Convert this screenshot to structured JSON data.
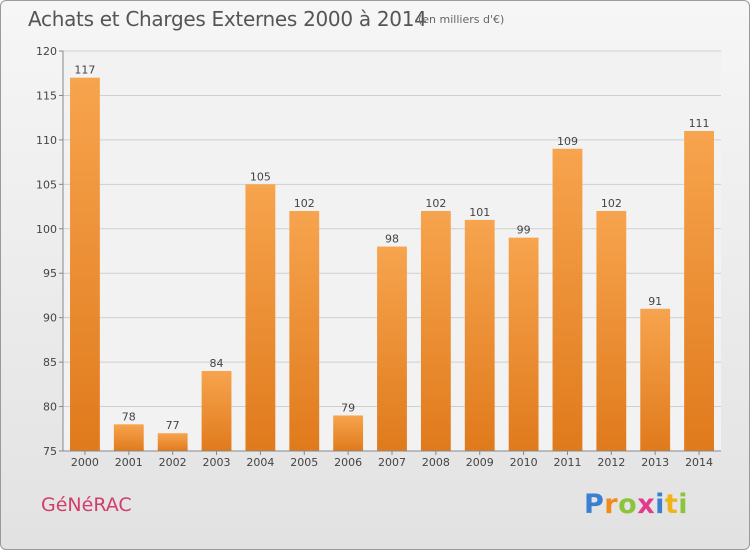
{
  "header": {
    "title": "Achats et Charges Externes 2000 à 2014",
    "unit": "(en milliers d'€)"
  },
  "footer": {
    "place": "GéNéRAC",
    "logo_letters": [
      "P",
      "r",
      "o",
      "x",
      "i",
      "t",
      "i"
    ]
  },
  "colors": {
    "bar_top": "#f7a44e",
    "bar_bottom": "#e07a1c",
    "place_text": "#d23d6c",
    "logo_letters": [
      "#3a7fd1",
      "#f08a18",
      "#8cc43c",
      "#e23a8e",
      "#3a7fd1",
      "#f0b418",
      "#8cc43c"
    ]
  },
  "chart_data": {
    "type": "bar",
    "title": "Achats et Charges Externes 2000 à 2014",
    "subtitle": "(en milliers d'€)",
    "categories": [
      "2000",
      "2001",
      "2002",
      "2003",
      "2004",
      "2005",
      "2006",
      "2007",
      "2008",
      "2009",
      "2010",
      "2011",
      "2012",
      "2013",
      "2014"
    ],
    "values": [
      117,
      78,
      77,
      84,
      105,
      102,
      79,
      98,
      102,
      101,
      99,
      109,
      102,
      91,
      111
    ],
    "ylim": [
      75,
      120
    ],
    "yticks": [
      75,
      80,
      85,
      90,
      95,
      100,
      105,
      110,
      115,
      120
    ],
    "grid": true,
    "data_labels": true
  }
}
